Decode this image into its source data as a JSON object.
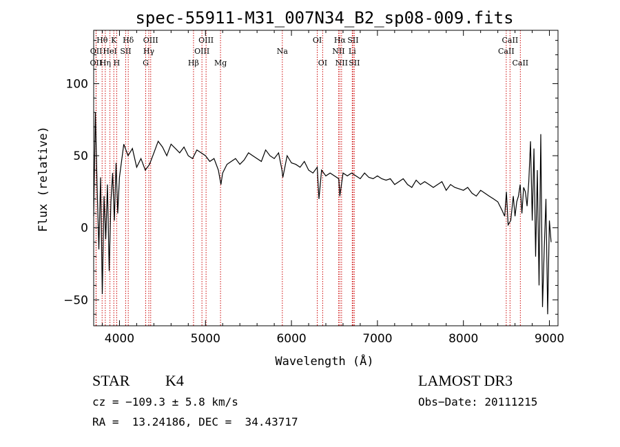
{
  "chart_data": {
    "type": "line",
    "title": "spec-55911-M31_007N34_B2_sp08-009.fits",
    "xlabel": "Wavelength (Å)",
    "ylabel": "Flux (relative)",
    "xlim": [
      3700,
      9100
    ],
    "ylim": [
      -68,
      137
    ],
    "xticks": [
      4000,
      5000,
      6000,
      7000,
      8000,
      9000
    ],
    "yticks": [
      -50,
      0,
      50,
      100
    ],
    "spectral_lines": [
      {
        "name": "OII",
        "wavelength": 3727,
        "row": 3
      },
      {
        "name": "OII",
        "wavelength": 3729,
        "row": 2
      },
      {
        "name": "Hθ",
        "wavelength": 3798,
        "row": 1
      },
      {
        "name": "Hη",
        "wavelength": 3835,
        "row": 3
      },
      {
        "name": "HeI",
        "wavelength": 3889,
        "row": 2
      },
      {
        "name": "K",
        "wavelength": 3934,
        "row": 1
      },
      {
        "name": "H",
        "wavelength": 3968,
        "row": 3
      },
      {
        "name": "SII",
        "wavelength": 4072,
        "row": 2
      },
      {
        "name": "Hδ",
        "wavelength": 4102,
        "row": 1
      },
      {
        "name": "G",
        "wavelength": 4305,
        "row": 3
      },
      {
        "name": "Hγ",
        "wavelength": 4341,
        "row": 2
      },
      {
        "name": "OIII",
        "wavelength": 4363,
        "row": 1
      },
      {
        "name": "Hβ",
        "wavelength": 4861,
        "row": 3
      },
      {
        "name": "OIII",
        "wavelength": 4959,
        "row": 2
      },
      {
        "name": "OIII",
        "wavelength": 5007,
        "row": 1
      },
      {
        "name": "Mg",
        "wavelength": 5175,
        "row": 3
      },
      {
        "name": "Na",
        "wavelength": 5894,
        "row": 2
      },
      {
        "name": "OI",
        "wavelength": 6300,
        "row": 1
      },
      {
        "name": "OI",
        "wavelength": 6363,
        "row": 3
      },
      {
        "name": "NII",
        "wavelength": 6548,
        "row": 2
      },
      {
        "name": "Hα",
        "wavelength": 6563,
        "row": 1
      },
      {
        "name": "NII",
        "wavelength": 6583,
        "row": 3
      },
      {
        "name": "Li",
        "wavelength": 6707,
        "row": 2
      },
      {
        "name": "SII",
        "wavelength": 6716,
        "row": 1
      },
      {
        "name": "SII",
        "wavelength": 6731,
        "row": 3
      },
      {
        "name": "CaII",
        "wavelength": 8498,
        "row": 2
      },
      {
        "name": "CaII",
        "wavelength": 8542,
        "row": 1
      },
      {
        "name": "CaII",
        "wavelength": 8662,
        "row": 3
      }
    ],
    "series": [
      {
        "name": "flux",
        "x": [
          3700,
          3720,
          3740,
          3760,
          3780,
          3800,
          3820,
          3840,
          3860,
          3880,
          3900,
          3920,
          3940,
          3960,
          3980,
          4000,
          4050,
          4100,
          4150,
          4200,
          4250,
          4300,
          4350,
          4400,
          4450,
          4500,
          4550,
          4600,
          4650,
          4700,
          4750,
          4800,
          4850,
          4900,
          4950,
          5000,
          5050,
          5100,
          5150,
          5180,
          5200,
          5250,
          5300,
          5350,
          5400,
          5450,
          5500,
          5550,
          5600,
          5650,
          5700,
          5750,
          5800,
          5850,
          5890,
          5900,
          5950,
          6000,
          6050,
          6100,
          6150,
          6200,
          6250,
          6300,
          6320,
          6350,
          6400,
          6450,
          6500,
          6550,
          6563,
          6600,
          6650,
          6700,
          6750,
          6800,
          6850,
          6900,
          6950,
          7000,
          7050,
          7100,
          7150,
          7200,
          7250,
          7300,
          7350,
          7400,
          7450,
          7500,
          7550,
          7600,
          7650,
          7700,
          7750,
          7800,
          7850,
          7900,
          7950,
          8000,
          8050,
          8100,
          8150,
          8200,
          8250,
          8300,
          8350,
          8400,
          8450,
          8480,
          8500,
          8520,
          8550,
          8580,
          8600,
          8620,
          8640,
          8660,
          8680,
          8700,
          8720,
          8740,
          8760,
          8780,
          8800,
          8820,
          8840,
          8860,
          8880,
          8900,
          8920,
          8940,
          8960,
          8980,
          9000,
          9020
        ],
        "values": [
          8,
          80,
          28,
          -15,
          35,
          -46,
          22,
          -8,
          30,
          -30,
          18,
          38,
          5,
          45,
          10,
          35,
          58,
          50,
          55,
          42,
          48,
          40,
          44,
          52,
          60,
          56,
          50,
          58,
          55,
          52,
          56,
          50,
          48,
          54,
          52,
          50,
          46,
          48,
          40,
          30,
          38,
          44,
          46,
          48,
          44,
          47,
          52,
          50,
          48,
          46,
          54,
          50,
          48,
          52,
          40,
          35,
          50,
          45,
          44,
          42,
          46,
          40,
          38,
          42,
          20,
          40,
          36,
          38,
          36,
          34,
          22,
          38,
          36,
          38,
          36,
          34,
          38,
          35,
          34,
          36,
          34,
          33,
          34,
          30,
          32,
          34,
          30,
          28,
          33,
          30,
          32,
          30,
          28,
          30,
          32,
          26,
          30,
          28,
          27,
          26,
          28,
          24,
          22,
          26,
          24,
          22,
          20,
          18,
          12,
          8,
          25,
          2,
          5,
          22,
          8,
          18,
          22,
          30,
          10,
          28,
          25,
          15,
          32,
          60,
          5,
          55,
          -20,
          40,
          -40,
          65,
          -55,
          -15,
          20,
          -60,
          5,
          -10
        ]
      }
    ]
  },
  "info": {
    "class": "STAR",
    "subclass": "K4",
    "survey": "LAMOST DR3",
    "cz": "cz = −109.3 ± 5.8 km/s",
    "obs_date": "Obs−Date: 20111215",
    "radec": "RA =  13.24186, DEC =  34.43717"
  },
  "colors": {
    "line": "#000000",
    "marker": "#cc0000"
  }
}
